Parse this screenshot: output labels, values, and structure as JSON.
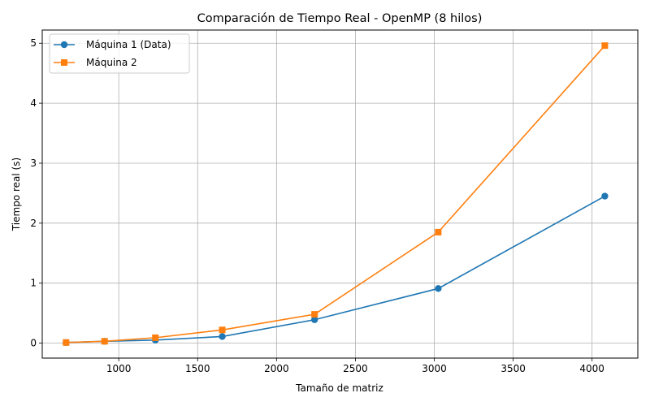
{
  "chart_data": {
    "type": "line",
    "title": "Comparación de Tiempo Real - OpenMP (8 hilos)",
    "xlabel": "Tamaño de matriz",
    "ylabel": "Tiempo real (s)",
    "xlim": [
      515,
      4290
    ],
    "ylim": [
      -0.25,
      5.22
    ],
    "xticks": [
      1000,
      1500,
      2000,
      2500,
      3000,
      3500,
      4000
    ],
    "yticks": [
      0,
      1,
      2,
      3,
      4,
      5
    ],
    "grid": true,
    "legend_position": "top-left",
    "series": [
      {
        "name": "Máquina 1 (Data)",
        "color": "#1f77b4",
        "marker": "circle",
        "x": [
          666,
          910,
          1232,
          1656,
          2241,
          3025,
          4081
        ],
        "y": [
          0.01,
          0.03,
          0.05,
          0.11,
          0.39,
          0.91,
          2.45
        ]
      },
      {
        "name": "Máquina 2",
        "color": "#ff7f0e",
        "marker": "square",
        "x": [
          666,
          910,
          1232,
          1656,
          2241,
          3025,
          4081
        ],
        "y": [
          0.01,
          0.03,
          0.09,
          0.22,
          0.48,
          1.85,
          4.96
        ]
      }
    ]
  }
}
